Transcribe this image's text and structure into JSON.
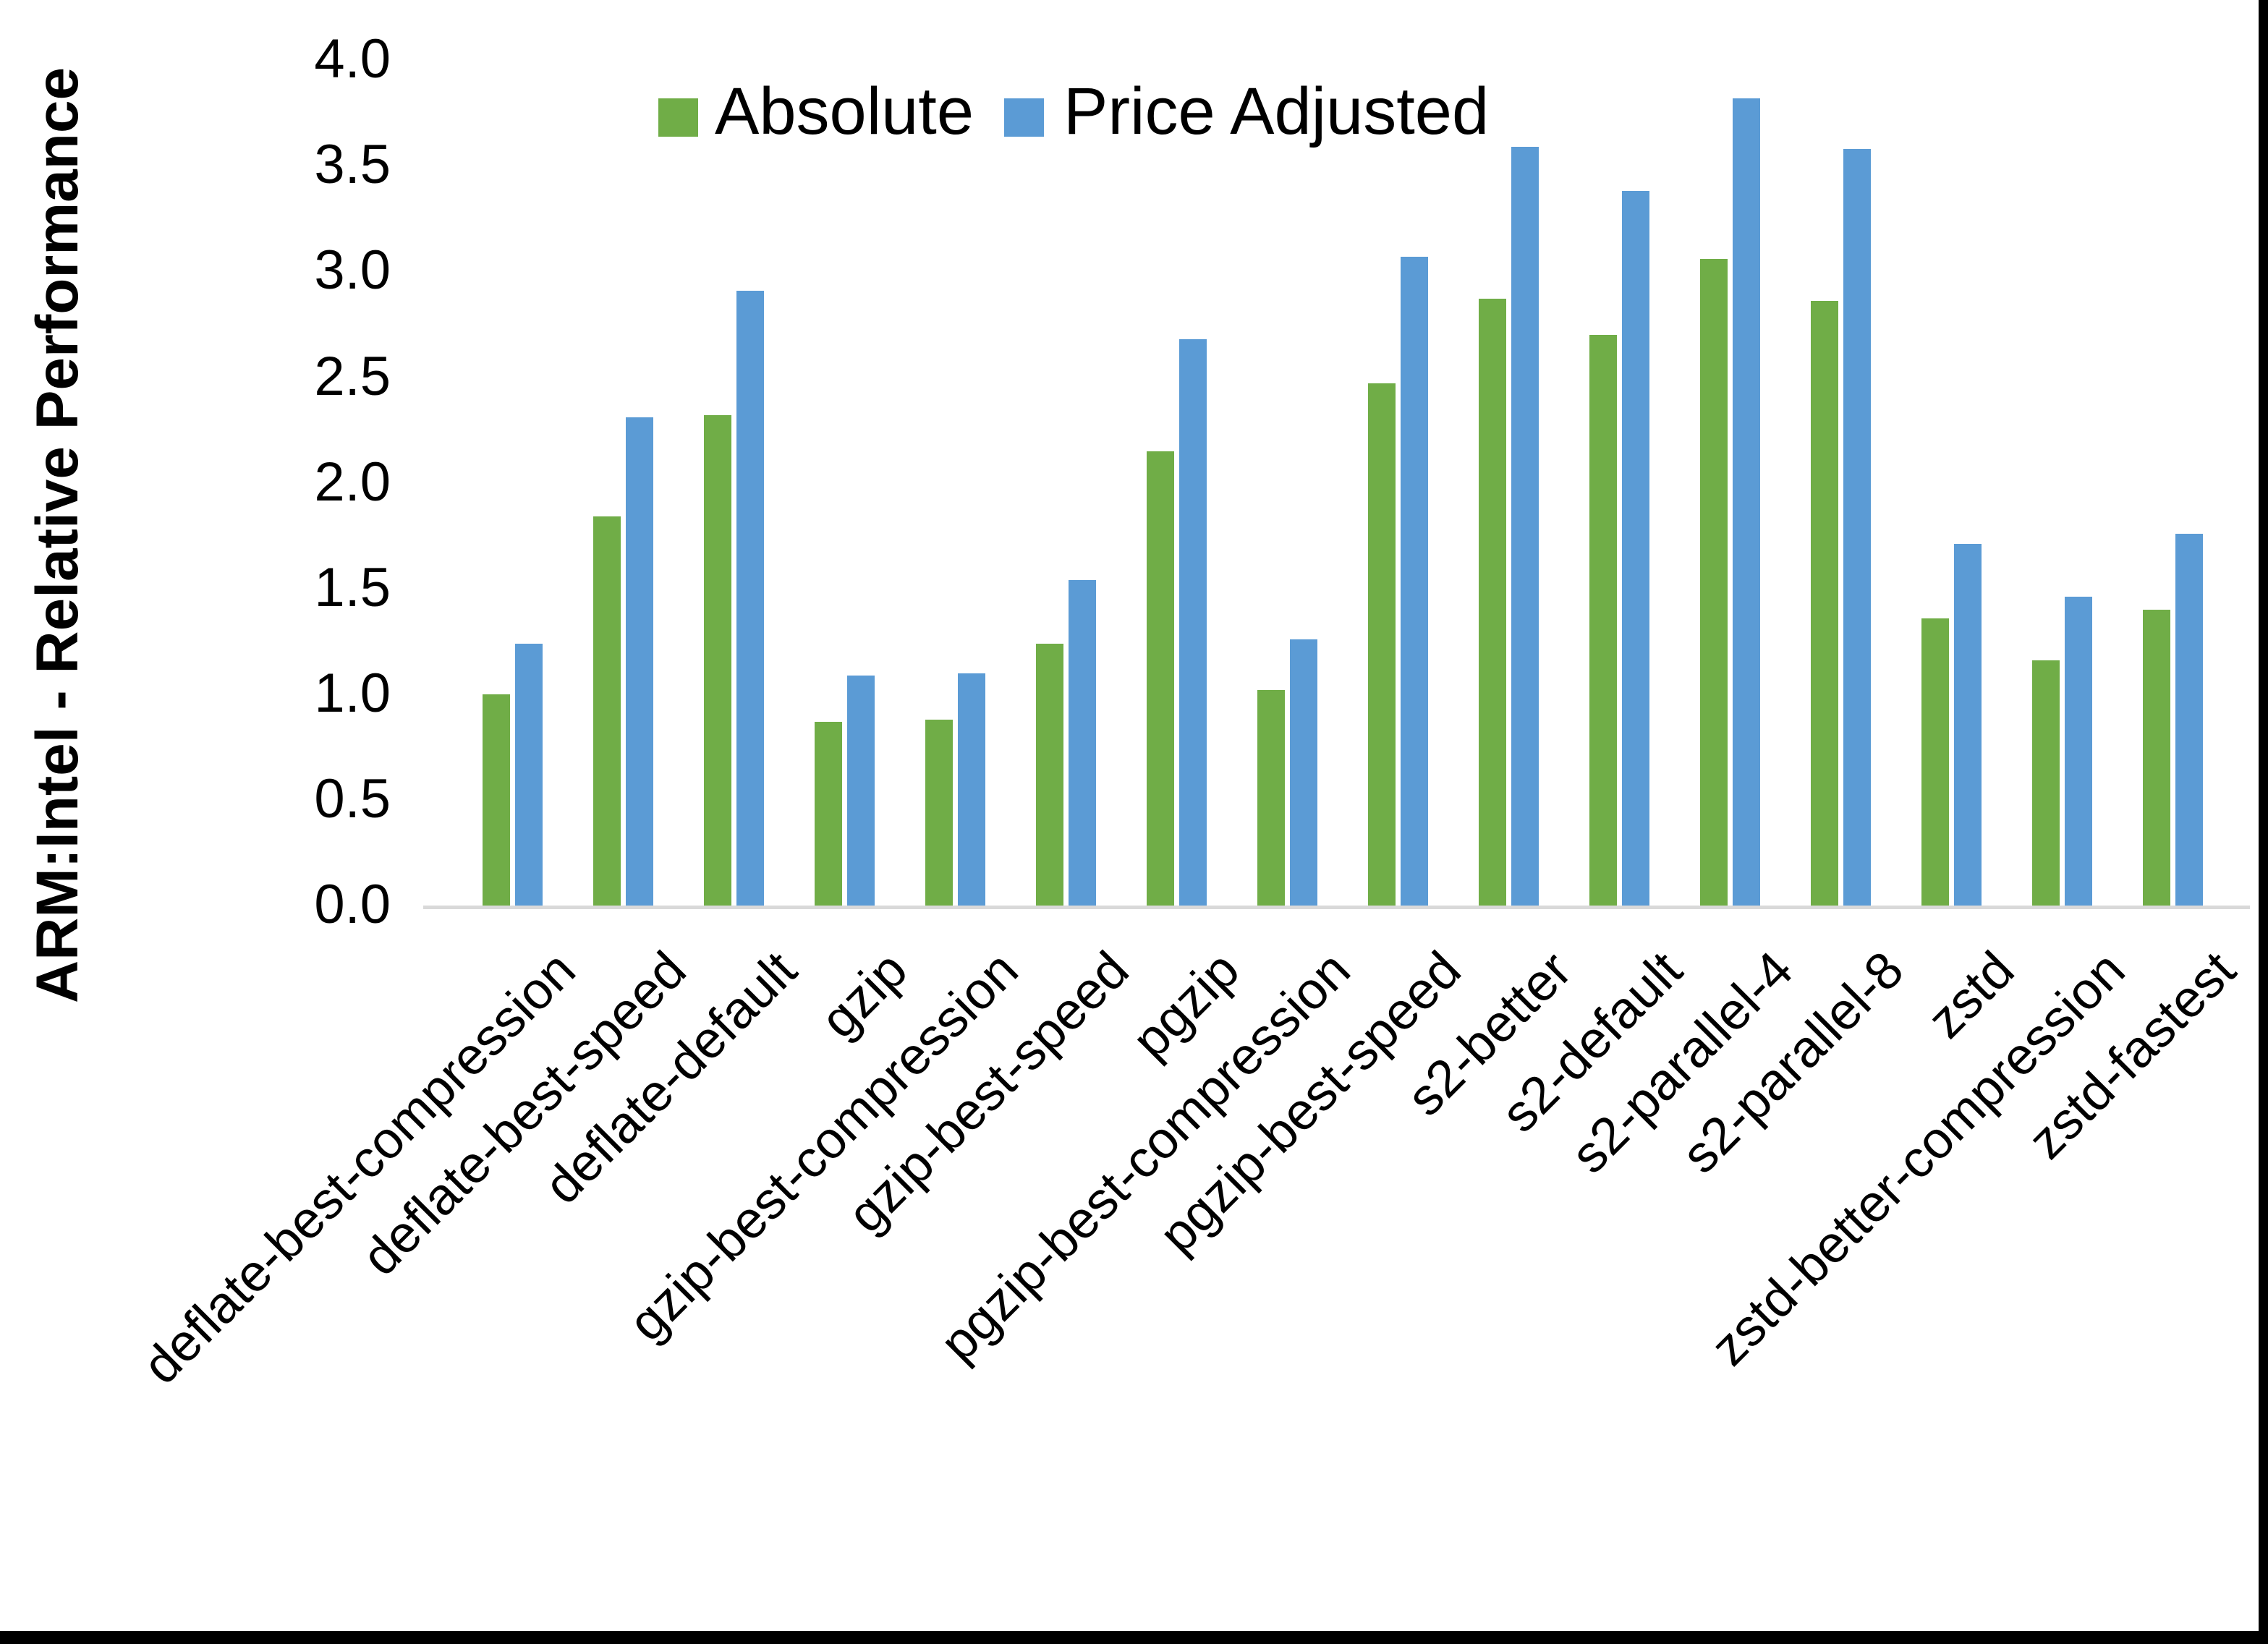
{
  "chart_data": {
    "type": "bar",
    "title": "",
    "ylabel": "ARM:Intel - Relative Performance",
    "xlabel": "",
    "ylim": [
      0.0,
      4.0
    ],
    "ytick_step": 0.5,
    "yticks": [
      "4.0",
      "3.5",
      "3.0",
      "2.5",
      "2.0",
      "1.5",
      "1.0",
      "0.5",
      "0.0"
    ],
    "grid": false,
    "legend_position": "top",
    "categories": [
      "deflate-best-compression",
      "deflate-best-speed",
      "deflate-default",
      "gzip",
      "gzip-best-compression",
      "gzip-best-speed",
      "pgzip",
      "pgzip-best-compression",
      "pgzip-best-speed",
      "s2-better",
      "s2-default",
      "s2-parallel-4",
      "s2-parallel-8",
      "zstd",
      "zstd-better-compression",
      "zstd-fastest"
    ],
    "series": [
      {
        "name": "Absolute",
        "color": "#70AD47",
        "values": [
          1.0,
          1.84,
          2.32,
          0.87,
          0.88,
          1.24,
          2.15,
          1.02,
          2.47,
          2.87,
          2.7,
          3.06,
          2.86,
          1.36,
          1.16,
          1.4
        ]
      },
      {
        "name": "Price Adjusted",
        "color": "#5B9BD5",
        "values": [
          1.24,
          2.31,
          2.91,
          1.09,
          1.1,
          1.54,
          2.68,
          1.26,
          3.07,
          3.59,
          3.38,
          3.82,
          3.58,
          1.71,
          1.46,
          1.76
        ]
      }
    ],
    "axis_line_color": "#D9D9D9",
    "text_color": "#000000"
  }
}
